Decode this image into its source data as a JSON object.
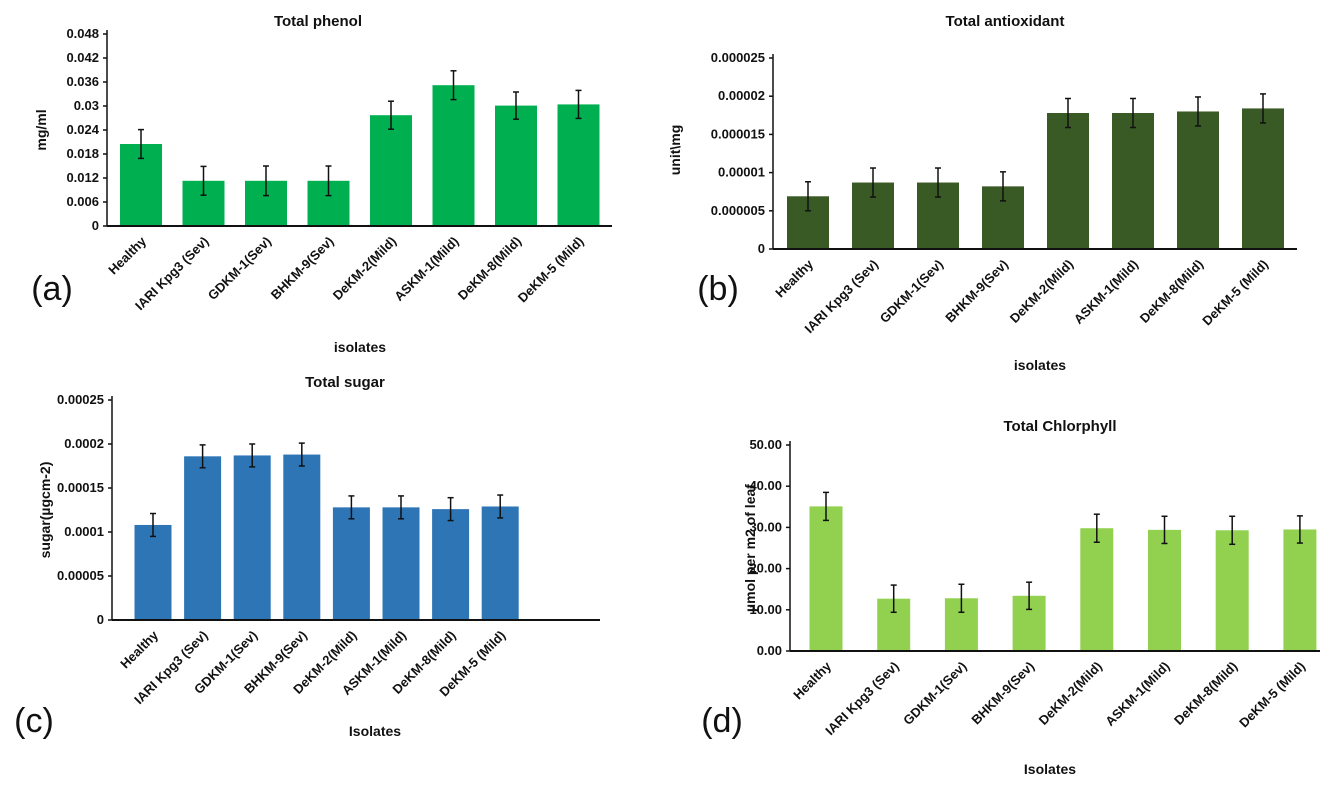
{
  "chart_data": [
    {
      "type": "bar",
      "panel_label": "(a)",
      "title": "Total phenol",
      "xlabel": "isolates",
      "ylabel": "mg/ml",
      "color": "#00b050",
      "categories": [
        "Healthy",
        "IARI Kpg3 (Sev)",
        "GDKM-1(Sev)",
        "BHKM-9(Sev)",
        "DeKM-2(Mild)",
        "ASKM-1(Mild)",
        "DeKM-8(Mild)",
        "DeKM-5 (Mild)"
      ],
      "values": [
        0.0205,
        0.0113,
        0.0113,
        0.0113,
        0.0277,
        0.0352,
        0.0301,
        0.0304
      ],
      "errors": [
        0.0036,
        0.0036,
        0.0037,
        0.0037,
        0.0035,
        0.0036,
        0.0034,
        0.0035
      ],
      "ylim": [
        0,
        0.048
      ],
      "yticks": [
        "0",
        "0.006",
        "0.012",
        "0.018",
        "0.024",
        "0.03",
        "0.036",
        "0.042",
        "0.048"
      ],
      "ytick_values": [
        0,
        0.006,
        0.012,
        0.018,
        0.024,
        0.03,
        0.036,
        0.042,
        0.048
      ]
    },
    {
      "type": "bar",
      "panel_label": "(b)",
      "title": "Total antioxidant",
      "xlabel": "isolates",
      "ylabel": "unit\\mg",
      "color": "#3a5a25",
      "categories": [
        "Healthy",
        "IARI Kpg3 (Sev)",
        "GDKM-1(Sev)",
        "BHKM-9(Sev)",
        "DeKM-2(Mild)",
        "ASKM-1(Mild)",
        "DeKM-8(Mild)",
        "DeKM-5 (Mild)"
      ],
      "values": [
        6.9e-06,
        8.7e-06,
        8.7e-06,
        8.2e-06,
        1.78e-05,
        1.78e-05,
        1.8e-05,
        1.84e-05
      ],
      "errors": [
        1.9e-06,
        1.9e-06,
        1.9e-06,
        1.9e-06,
        1.9e-06,
        1.9e-06,
        1.9e-06,
        1.9e-06
      ],
      "ylim": [
        0,
        2.5e-05
      ],
      "yticks": [
        "0",
        "0.000005",
        "0.00001",
        "0.000015",
        "0.00002",
        "0.000025"
      ],
      "ytick_values": [
        0,
        5e-06,
        1e-05,
        1.5e-05,
        2e-05,
        2.5e-05
      ]
    },
    {
      "type": "bar",
      "panel_label": "(c)",
      "title": "Total sugar",
      "xlabel": "Isolates",
      "ylabel": "sugar(µgcm-2)",
      "color": "#2e75b6",
      "categories": [
        "Healthy",
        "IARI Kpg3 (Sev)",
        "GDKM-1(Sev)",
        "BHKM-9(Sev)",
        "DeKM-2(Mild)",
        "ASKM-1(Mild)",
        "DeKM-8(Mild)",
        "DeKM-5 (Mild)"
      ],
      "values": [
        0.000108,
        0.000186,
        0.000187,
        0.000188,
        0.000128,
        0.000128,
        0.000126,
        0.000129
      ],
      "errors": [
        1.3e-05,
        1.3e-05,
        1.3e-05,
        1.3e-05,
        1.3e-05,
        1.3e-05,
        1.3e-05,
        1.3e-05
      ],
      "ylim": [
        0,
        0.00025
      ],
      "yticks": [
        "0",
        "0.00005",
        "0.0001",
        "0.00015",
        "0.0002",
        "0.00025"
      ],
      "ytick_values": [
        0,
        5e-05,
        0.0001,
        0.00015,
        0.0002,
        0.00025
      ]
    },
    {
      "type": "bar",
      "panel_label": "(d)",
      "title": "Total Chlorphyll",
      "xlabel": "Isolates",
      "ylabel": "µmol per m2 of leaf",
      "color": "#92d050",
      "categories": [
        "Healthy",
        "IARI Kpg3 (Sev)",
        "GDKM-1(Sev)",
        "BHKM-9(Sev)",
        "DeKM-2(Mild)",
        "ASKM-1(Mild)",
        "DeKM-8(Mild)",
        "DeKM-5 (Mild)"
      ],
      "values": [
        35.1,
        12.7,
        12.8,
        13.4,
        29.8,
        29.4,
        29.3,
        29.5
      ],
      "errors": [
        3.4,
        3.3,
        3.4,
        3.3,
        3.4,
        3.3,
        3.4,
        3.3
      ],
      "ylim": [
        0,
        50
      ],
      "yticks": [
        "0.00",
        "10.00",
        "20.00",
        "30.00",
        "40.00",
        "50.00"
      ],
      "ytick_values": [
        0,
        10,
        20,
        30,
        40,
        50
      ]
    }
  ]
}
